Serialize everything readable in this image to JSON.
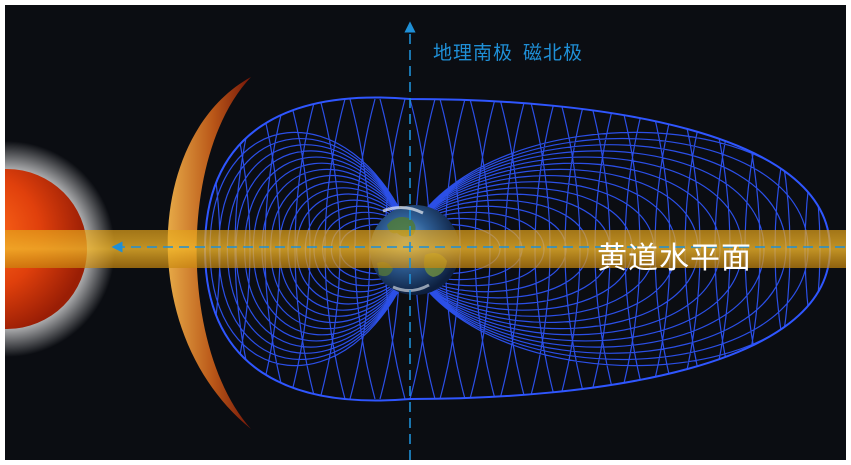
{
  "labels": {
    "axis_label_1": "地理南极",
    "axis_label_2": "磁北极",
    "plane_label": "黄道水平面"
  },
  "colors": {
    "background": "#0b0d12",
    "field_lines": "#2f56ff",
    "ecliptic_band": "#e3a21a",
    "axis_lines": "#1f8fd6",
    "sun": "#e0400c"
  },
  "icons": {
    "sun": "sun-icon",
    "earth": "earth-icon"
  }
}
